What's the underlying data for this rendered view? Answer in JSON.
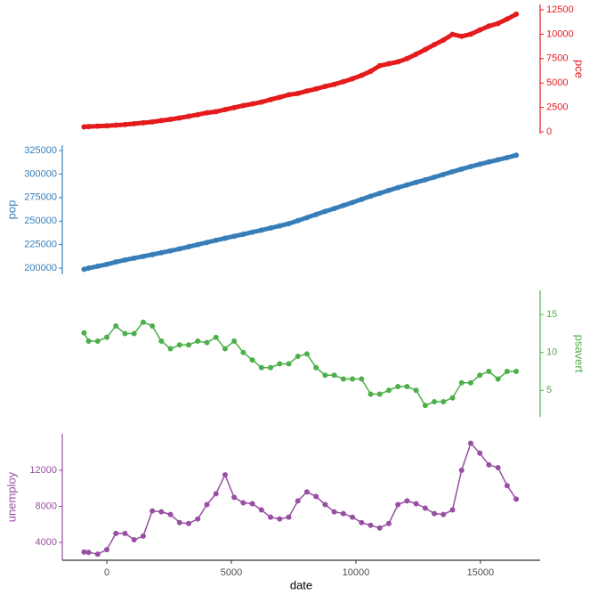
{
  "chart_data": [
    {
      "type": "scatter",
      "ylabel": "pce",
      "color": "#e41a1c",
      "y_axis_side": "right",
      "x": [
        -915,
        -731,
        -365,
        0,
        365,
        730,
        1096,
        1461,
        1826,
        2191,
        2557,
        2922,
        3287,
        3652,
        4018,
        4383,
        4748,
        5113,
        5479,
        5844,
        6209,
        6574,
        6940,
        7305,
        7670,
        8035,
        8401,
        8766,
        9131,
        9496,
        9862,
        10227,
        10592,
        10957,
        11323,
        11688,
        12053,
        12418,
        12784,
        13149,
        13514,
        13879,
        14245,
        14610,
        14975,
        15340,
        15706,
        16071,
        16436
      ],
      "values": [
        507,
        535,
        580,
        620,
        680,
        740,
        830,
        920,
        1010,
        1150,
        1280,
        1420,
        1590,
        1760,
        1950,
        2060,
        2280,
        2480,
        2690,
        2860,
        3050,
        3300,
        3540,
        3800,
        3930,
        4180,
        4400,
        4650,
        4860,
        5140,
        5440,
        5780,
        6200,
        6770,
        6980,
        7170,
        7500,
        7950,
        8430,
        8930,
        9400,
        9980,
        9780,
        10000,
        10440,
        10830,
        11100,
        11550,
        12050
      ],
      "xlim": [
        -1787,
        17398
      ],
      "ylim": [
        -182,
        13047
      ],
      "yticks": [
        0,
        2500,
        5000,
        7500,
        10000,
        12500
      ]
    },
    {
      "type": "scatter",
      "ylabel": "pop",
      "color": "#377eb8",
      "y_axis_side": "left",
      "x": [
        -915,
        -731,
        -365,
        0,
        365,
        730,
        1096,
        1461,
        1826,
        2191,
        2557,
        2922,
        3287,
        3652,
        4018,
        4383,
        4748,
        5113,
        5479,
        5844,
        6209,
        6574,
        6940,
        7305,
        7670,
        8035,
        8401,
        8766,
        9131,
        9496,
        9862,
        10227,
        10592,
        10957,
        11323,
        11688,
        12053,
        12418,
        12784,
        13149,
        13514,
        13879,
        14245,
        14610,
        14975,
        15340,
        15706,
        16071,
        16436
      ],
      "values": [
        198712,
        200000,
        202000,
        204000,
        206500,
        208700,
        210600,
        212500,
        214400,
        216400,
        218400,
        220500,
        222700,
        225000,
        227300,
        229600,
        231800,
        233900,
        236000,
        238200,
        240400,
        242600,
        244900,
        247300,
        250500,
        253700,
        257000,
        260300,
        263400,
        266600,
        269800,
        273100,
        276400,
        279600,
        282700,
        285600,
        288500,
        291200,
        293900,
        296700,
        299600,
        302500,
        305300,
        308000,
        310500,
        312900,
        315200,
        317500,
        320000
      ],
      "xlim": [
        -1787,
        17398
      ],
      "ylim": [
        193400,
        330700
      ],
      "yticks": [
        200000,
        225000,
        250000,
        275000,
        300000,
        325000
      ]
    },
    {
      "type": "scatter",
      "ylabel": "psavert",
      "color": "#4daf4a",
      "y_axis_side": "right",
      "x": [
        -915,
        -731,
        -365,
        0,
        365,
        730,
        1096,
        1461,
        1826,
        2191,
        2557,
        2922,
        3287,
        3652,
        4018,
        4383,
        4748,
        5113,
        5479,
        5844,
        6209,
        6574,
        6940,
        7305,
        7670,
        8035,
        8401,
        8766,
        9131,
        9496,
        9862,
        10227,
        10592,
        10957,
        11323,
        11688,
        12053,
        12418,
        12784,
        13149,
        13514,
        13879,
        14245,
        14610,
        14975,
        15340,
        15706,
        16071,
        16436
      ],
      "values": [
        12.6,
        11.5,
        11.5,
        12.0,
        13.5,
        12.5,
        12.5,
        14.0,
        13.5,
        11.5,
        10.5,
        11.0,
        11.0,
        11.5,
        11.3,
        12.0,
        10.5,
        11.5,
        10.0,
        9.0,
        8.0,
        8.0,
        8.5,
        8.5,
        9.5,
        9.8,
        8.0,
        7.0,
        7.0,
        6.5,
        6.5,
        6.5,
        4.5,
        4.5,
        5.0,
        5.5,
        5.5,
        5.0,
        3.0,
        3.5,
        3.5,
        4.0,
        6.0,
        6.0,
        7.0,
        7.5,
        6.5,
        7.5,
        7.5
      ],
      "xlim": [
        -1787,
        17398
      ],
      "ylim": [
        1.5,
        18.2
      ],
      "yticks": [
        5,
        10,
        15
      ]
    },
    {
      "type": "scatter",
      "ylabel": "unemploy",
      "xlabel": "date",
      "color": "#984ea3",
      "y_axis_side": "left",
      "x": [
        -915,
        -731,
        -365,
        0,
        365,
        730,
        1096,
        1461,
        1826,
        2191,
        2557,
        2922,
        3287,
        3652,
        4018,
        4383,
        4748,
        5113,
        5479,
        5844,
        6209,
        6574,
        6940,
        7305,
        7670,
        8035,
        8401,
        8766,
        9131,
        9496,
        9862,
        10227,
        10592,
        10957,
        11323,
        11688,
        12053,
        12418,
        12784,
        13149,
        13514,
        13879,
        14245,
        14610,
        14975,
        15340,
        15706,
        16071,
        16436
      ],
      "values": [
        2944,
        2900,
        2700,
        3200,
        5000,
        5000,
        4300,
        4700,
        7500,
        7400,
        7100,
        6200,
        6100,
        6600,
        8200,
        9400,
        11500,
        9000,
        8400,
        8300,
        7600,
        6800,
        6600,
        6800,
        8600,
        9600,
        9100,
        8200,
        7400,
        7200,
        6800,
        6200,
        5900,
        5600,
        6100,
        8200,
        8600,
        8300,
        7800,
        7200,
        7100,
        7600,
        12000,
        15000,
        13900,
        12600,
        12300,
        10300,
        8800
      ],
      "xlim": [
        -1787,
        17398
      ],
      "xticks": [
        0,
        5000,
        10000,
        15000
      ],
      "ylim": [
        2025,
        16050
      ],
      "yticks": [
        4000,
        8000,
        12000
      ]
    }
  ]
}
